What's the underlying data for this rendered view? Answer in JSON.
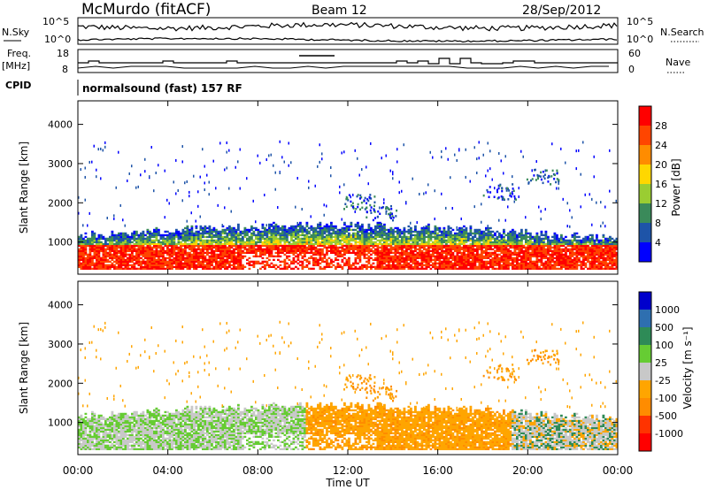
{
  "header": {
    "station": "McMurdo (fitACF)",
    "beam": "Beam 12",
    "date": "28/Sep/2012"
  },
  "side_labels": {
    "nsky": "N.Sky",
    "freq": "Freq.",
    "freq_unit": "[MHz]",
    "cpid": "CPID",
    "nsearch": "N.Search",
    "nave": "Nave"
  },
  "cpid_text": "normalsound (fast) 157 RF",
  "colors": {
    "power": [
      "#0000ff",
      "#1e54a8",
      "#3a8a5a",
      "#9acd32",
      "#ffd700",
      "#ff8c00",
      "#ff4500",
      "#ff0000"
    ],
    "velocity": [
      "#0000cc",
      "#2e6fb0",
      "#2e8b57",
      "#66cc33",
      "#c8c8c8",
      "#ffa500",
      "#ff8c00",
      "#ff3300",
      "#ff0000"
    ]
  },
  "chart_data": [
    {
      "type": "line",
      "panel": "noise",
      "left_ticks": [
        "10^5",
        "10^0"
      ],
      "right_ticks": [
        "10^5",
        "10^0"
      ]
    },
    {
      "type": "line",
      "panel": "frequency",
      "left_ticks": [
        "18",
        "8"
      ],
      "right_ticks": [
        "60",
        "0"
      ]
    },
    {
      "type": "heatmap",
      "title": "",
      "ylabel": "Slant Range [km]",
      "yticks": [
        "1000",
        "2000",
        "3000",
        "4000"
      ],
      "ylim": [
        180,
        4600
      ],
      "colorbar_label": "Power [dB]",
      "colorbar_ticks": [
        "4",
        "8",
        "12",
        "16",
        "20",
        "24",
        "28"
      ]
    },
    {
      "type": "heatmap",
      "title": "",
      "ylabel": "Slant Range [km]",
      "yticks": [
        "1000",
        "2000",
        "3000",
        "4000"
      ],
      "ylim": [
        180,
        4600
      ],
      "colorbar_label": "Velocity [m s⁻¹]",
      "colorbar_ticks": [
        "1000",
        "500",
        "100",
        "25",
        "-25",
        "-100",
        "-500",
        "-1000"
      ]
    }
  ],
  "xaxis": {
    "ticks": [
      "00:00",
      "04:00",
      "08:00",
      "12:00",
      "16:00",
      "20:00",
      "00:00"
    ],
    "label": "Time UT"
  }
}
